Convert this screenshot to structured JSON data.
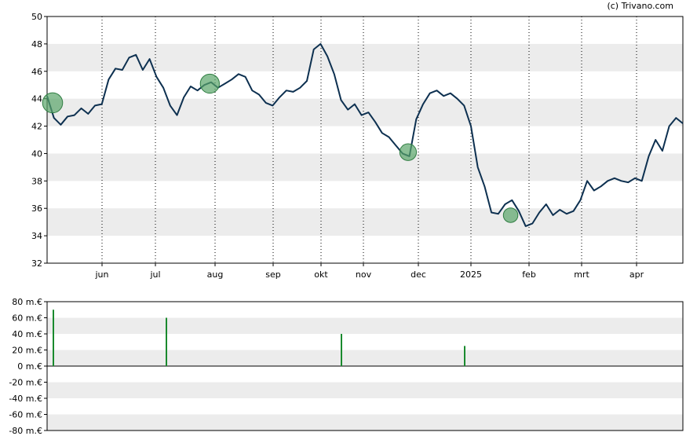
{
  "credit": "(c) Trivano.com",
  "colors": {
    "line": "#0d3050",
    "band": "#ececec",
    "bubble_fill": "#5aa56a",
    "bubble_stroke": "#2f7d42",
    "volume_bar": "#1a8a2e"
  },
  "chart_data": [
    {
      "type": "line",
      "title": "",
      "x_tick_labels": [
        "jun",
        "jul",
        "aug",
        "sep",
        "okt",
        "nov",
        "dec",
        "2025",
        "feb",
        "mrt",
        "apr"
      ],
      "y_tick_labels": [
        "32",
        "34",
        "36",
        "38",
        "40",
        "42",
        "44",
        "46",
        "48",
        "50"
      ],
      "ylim": [
        32,
        50
      ],
      "grid": true,
      "series": [
        {
          "values": [
            44.2,
            42.6,
            42.1,
            42.7,
            42.8,
            43.3,
            42.9,
            43.5,
            43.6,
            45.4,
            46.2,
            46.1,
            47.0,
            47.2,
            46.1,
            46.9,
            45.6,
            44.8,
            43.5,
            42.8,
            44.1,
            44.9,
            44.6,
            45.0,
            45.2,
            44.8,
            45.1,
            45.4,
            45.8,
            45.6,
            44.6,
            44.3,
            43.7,
            43.5,
            44.1,
            44.6,
            44.5,
            44.8,
            45.3,
            47.6,
            48.0,
            47.1,
            45.8,
            43.9,
            43.2,
            43.6,
            42.8,
            43.0,
            42.3,
            41.5,
            41.2,
            40.6,
            40.0,
            39.8,
            42.5,
            43.6,
            44.4,
            44.6,
            44.2,
            44.4,
            44.0,
            43.5,
            42.0,
            39.0,
            37.6,
            35.7,
            35.6,
            36.3,
            36.6,
            35.8,
            34.7,
            34.9,
            35.7,
            36.3,
            35.5,
            35.9,
            35.6,
            35.8,
            36.6,
            38.0,
            37.3,
            37.6,
            38.0,
            38.2,
            38.0,
            37.9,
            38.2,
            38.0,
            39.8,
            41.0,
            40.2,
            42.0,
            42.6,
            42.2
          ],
          "x_index": [
            0,
            1,
            2,
            3,
            4,
            5,
            6,
            7,
            8,
            9,
            10,
            11,
            12,
            13,
            14,
            15,
            16,
            17,
            18,
            19,
            20,
            21,
            22,
            23,
            24,
            25,
            26,
            27,
            28,
            29,
            30,
            31,
            32,
            33,
            34,
            35,
            36,
            37,
            38,
            39,
            40,
            41,
            42,
            43,
            44,
            45,
            46,
            47,
            48,
            49,
            50,
            51,
            52,
            53,
            54,
            55,
            56,
            57,
            58,
            59,
            60,
            61,
            62,
            63,
            64,
            65,
            66,
            67,
            68,
            69,
            70,
            71,
            72,
            73,
            74,
            75,
            76,
            77,
            78,
            79,
            80,
            81,
            82,
            83,
            84,
            85,
            86,
            87,
            88,
            89,
            90,
            91,
            92,
            93
          ]
        }
      ],
      "events": [
        {
          "x_index": 0,
          "y": 43.7,
          "amount": 70
        },
        {
          "x_index": 23,
          "y": 45.1,
          "amount": 60
        },
        {
          "x_index": 52,
          "y": 40.1,
          "amount": 40
        },
        {
          "x_index": 67,
          "y": 35.5,
          "amount": 25
        }
      ]
    },
    {
      "type": "bar",
      "title": "",
      "y_tick_labels": [
        "80 m.€",
        "60 m.€",
        "40 m.€",
        "20 m.€",
        "0 m.€",
        "-20 m.€",
        "-40 m.€",
        "-60 m.€",
        "-80 m.€"
      ],
      "ylim": [
        -80,
        80
      ],
      "grid": true,
      "values": [
        70,
        60,
        40,
        25
      ]
    }
  ]
}
